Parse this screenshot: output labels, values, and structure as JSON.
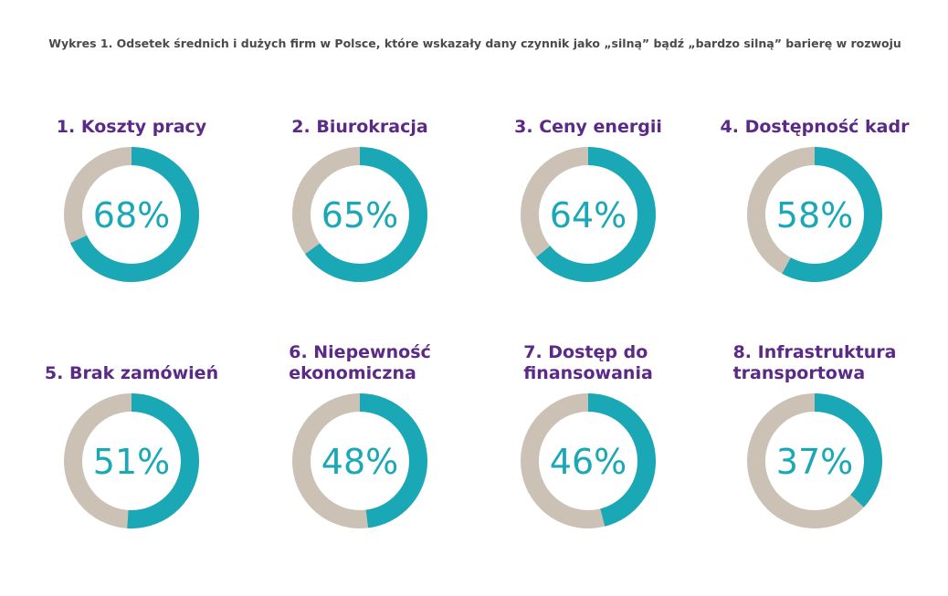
{
  "title": "Wykres 1. Odsetek średnich i dużych firm w Polsce, które wskazały dany czynnik jako „silną” bądź „bardzo silną” barierę w rozwoju",
  "colors": {
    "accent": "#1aa8b6",
    "track": "#cbc1b4",
    "label": "#5b2a86"
  },
  "chart_data": {
    "type": "pie",
    "title": "Wykres 1. Odsetek średnich i dużych firm w Polsce, które wskazały dany czynnik jako „silną” bądź „bardzo silną” barierę w rozwoju",
    "items": [
      {
        "label": "1. Koszty pracy",
        "value": 68,
        "display": "68%"
      },
      {
        "label": "2. Biurokracja",
        "value": 65,
        "display": "65%"
      },
      {
        "label": "3. Ceny energii",
        "value": 64,
        "display": "64%"
      },
      {
        "label": "4. Dostępność kadr",
        "value": 58,
        "display": "58%"
      },
      {
        "label": "5. Brak zamówień",
        "value": 51,
        "display": "51%"
      },
      {
        "label": "6. Niepewność ekonomiczna",
        "value": 48,
        "display": "48%"
      },
      {
        "label": "7. Dostęp do finansowania",
        "value": 46,
        "display": "46%"
      },
      {
        "label": "8. Infrastruktura transportowa",
        "value": 37,
        "display": "37%"
      }
    ]
  }
}
